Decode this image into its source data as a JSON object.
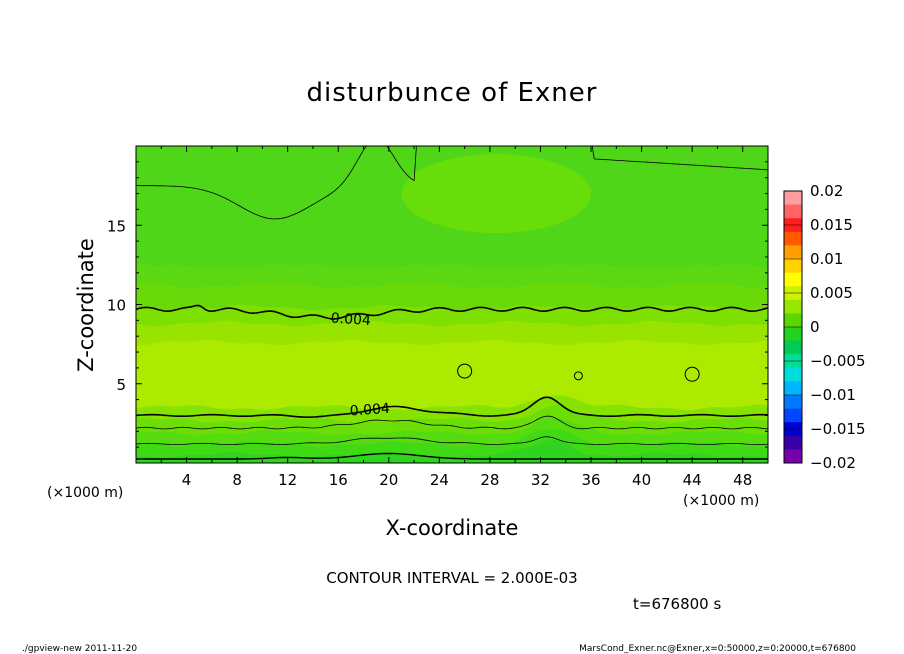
{
  "chart_data": {
    "type": "heatmap",
    "title": "disturbunce of Exner",
    "xlabel": "X-coordinate",
    "ylabel": "Z-coordinate",
    "x_unit_label_left": "(×1000 m)",
    "x_unit_label_right": "(×1000 m)",
    "xlim": [
      0,
      50
    ],
    "ylim": [
      0,
      20
    ],
    "x_ticks": [
      4,
      8,
      12,
      16,
      20,
      24,
      28,
      32,
      36,
      40,
      44,
      48
    ],
    "y_ticks": [
      5,
      10,
      15
    ],
    "contour_interval_text": "CONTOUR INTERVAL = 2.000E-03",
    "time_text": "t=676800 s",
    "contour_labels": [
      {
        "text": "0.004",
        "x": 17.0,
        "z": 9.1
      },
      {
        "text": "0.004",
        "x": 18.5,
        "z": 3.4
      }
    ],
    "colorbar": {
      "min": -0.02,
      "max": 0.02,
      "tick_labels": [
        "0.02",
        "0.015",
        "0.01",
        "0.005",
        "0",
        "−0.005",
        "−0.01",
        "−0.015",
        "−0.02"
      ],
      "colors": [
        "#ff9e9e",
        "#ff6464",
        "#ff1e1e",
        "#ff5a00",
        "#ffa000",
        "#ffd200",
        "#ffff00",
        "#ccf200",
        "#95e600",
        "#5ad700",
        "#22d322",
        "#00cc55",
        "#00dd99",
        "#00dddd",
        "#00b4ff",
        "#0078ff",
        "#0046ff",
        "#0000d2",
        "#3a00a8",
        "#7700aa"
      ]
    },
    "field_bands": [
      {
        "z0": 0.0,
        "z1": 0.5,
        "value": 0.0005,
        "color": "#2ed41f"
      },
      {
        "z0": 0.5,
        "z1": 1.2,
        "value": 0.001,
        "color": "#3fd915"
      },
      {
        "z0": 1.2,
        "z1": 1.9,
        "value": 0.002,
        "color": "#55dc10"
      },
      {
        "z0": 1.9,
        "z1": 2.7,
        "value": 0.003,
        "color": "#6bde08"
      },
      {
        "z0": 2.7,
        "z1": 3.5,
        "value": 0.004,
        "color": "#86e200"
      },
      {
        "z0": 3.5,
        "z1": 7.6,
        "value": 0.0055,
        "color": "#acea00"
      },
      {
        "z0": 7.6,
        "z1": 8.8,
        "value": 0.0048,
        "color": "#98e400"
      },
      {
        "z0": 8.8,
        "z1": 9.8,
        "value": 0.0042,
        "color": "#7ee000"
      },
      {
        "z0": 9.8,
        "z1": 11.2,
        "value": 0.0035,
        "color": "#6ad90a"
      },
      {
        "z0": 11.2,
        "z1": 12.4,
        "value": 0.0028,
        "color": "#5cd812"
      },
      {
        "z0": 12.4,
        "z1": 20.0,
        "value": 0.0022,
        "color": "#50d618"
      }
    ],
    "upper_patch": {
      "x": [
        21,
        36
      ],
      "z": [
        14.5,
        19.5
      ],
      "value": 0.003,
      "color": "#6bde08"
    },
    "footer_left": "./gpview-new   2011-11-20",
    "footer_right": "MarsCond_Exner.nc@Exner,x=0:50000,z=0:20000,t=676800"
  }
}
